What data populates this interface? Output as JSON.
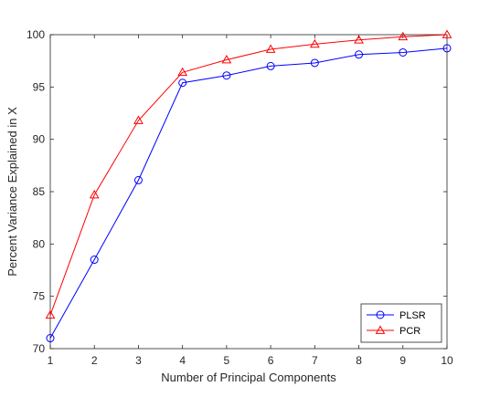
{
  "chart_data": {
    "type": "line",
    "xlabel": "Number of Principal Components",
    "ylabel": "Percent Variance Explained in X",
    "xlim": [
      1,
      10
    ],
    "ylim": [
      70,
      100
    ],
    "x_ticks": [
      "1",
      "2",
      "3",
      "4",
      "5",
      "6",
      "7",
      "8",
      "9",
      "10"
    ],
    "y_ticks": [
      "70",
      "75",
      "80",
      "85",
      "90",
      "95",
      "100"
    ],
    "grid": false,
    "legend_position": "bottom-right",
    "x": [
      1,
      2,
      3,
      4,
      5,
      6,
      7,
      8,
      9,
      10
    ],
    "series": [
      {
        "name": "PLSR",
        "color": "#0000ff",
        "marker": "circle",
        "values": [
          71.0,
          78.5,
          86.1,
          95.4,
          96.1,
          97.0,
          97.3,
          98.1,
          98.3,
          98.7
        ]
      },
      {
        "name": "PCR",
        "color": "#ff0000",
        "marker": "triangle",
        "values": [
          73.2,
          84.7,
          91.8,
          96.4,
          97.6,
          98.6,
          99.1,
          99.5,
          99.8,
          100.0
        ]
      }
    ]
  }
}
